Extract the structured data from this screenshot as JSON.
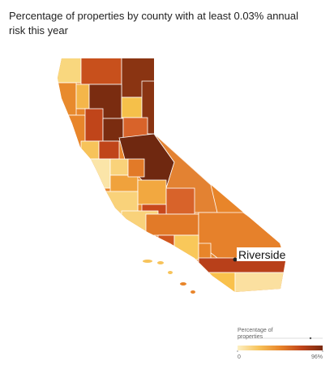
{
  "title": "Percentage of properties by county with at least 0.03% annual risk this year",
  "annotation": "Riverside",
  "legend": {
    "title": "Percentage of properties",
    "ticks": [
      0,
      {
        "value": 96,
        "label": "96%"
      }
    ],
    "colors": [
      "#fdf0c4",
      "#f7c35a",
      "#e8852a",
      "#c0451a",
      "#7a2a10"
    ]
  }
}
